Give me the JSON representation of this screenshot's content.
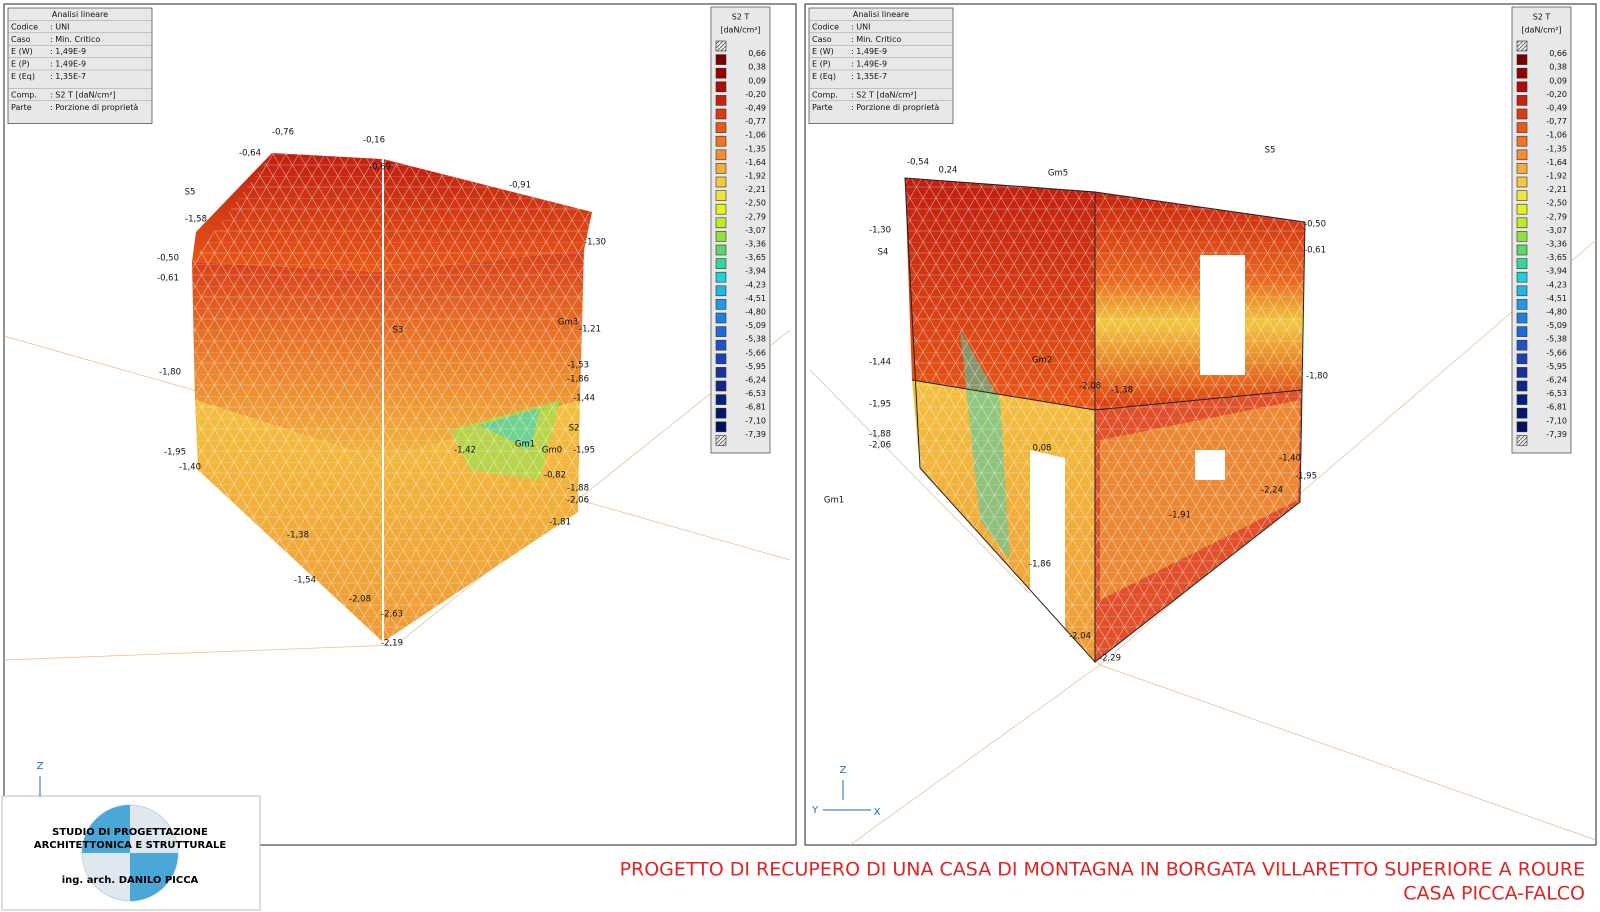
{
  "panels": [
    {
      "info": {
        "title": "Analisi lineare",
        "rows": [
          [
            "Codice",
            ": UNI"
          ],
          [
            "Caso",
            ":  Min. Critico"
          ],
          [
            "E (W)",
            ": 1,49E-9"
          ],
          [
            "E (P)",
            ": 1,49E-9"
          ],
          [
            "E (Eq)",
            ": 1,35E-7"
          ],
          [
            "Comp.",
            ": S2 T [daN/cm²]"
          ],
          [
            "Parte",
            ":  Porzione di proprietà"
          ]
        ]
      },
      "legend": {
        "title": "S2 T",
        "unit": "[daN/cm²]",
        "labels": [
          "0,66",
          "0,38",
          "0,09",
          "-0,20",
          "-0,49",
          "-0,77",
          "-1,06",
          "-1,35",
          "-1,64",
          "-1,92",
          "-2,21",
          "-2,50",
          "-2,79",
          "-3,07",
          "-3,36",
          "-3,65",
          "-3,94",
          "-4,23",
          "-4,51",
          "-4,80",
          "-5,09",
          "-5,38",
          "-5,66",
          "-5,95",
          "-6,24",
          "-6,53",
          "-6,81",
          "-7,10",
          "-7,39"
        ],
        "colors": [
          "#7a0000",
          "#950000",
          "#b00a0a",
          "#c8200c",
          "#dc3a10",
          "#e85818",
          "#ef7424",
          "#f29030",
          "#f4ac3c",
          "#f5c840",
          "#f2e43a",
          "#e4f020",
          "#c0ea28",
          "#92e040",
          "#5ed66a",
          "#34d4a4",
          "#22cfd4",
          "#20b6e6",
          "#209ae6",
          "#2080e0",
          "#2068d6",
          "#2052c6",
          "#1e40b4",
          "#18309e",
          "#10268c",
          "#081e7c",
          "#02186c",
          "#00105c",
          "#ffffff"
        ]
      },
      "labels": [
        "-0,76",
        "-0,16",
        "-0,64",
        "-0,69",
        "S5",
        "-1,58",
        "-0,50",
        "-0,61",
        "-0,91",
        "-1,30",
        "Gm3",
        "-1,21",
        "-1,80",
        "-1,53",
        "-1,86",
        "-1,44",
        "S3",
        "S2",
        "Gm1",
        "Gm0",
        "-1,42",
        "-1,95",
        "-1,95",
        "-1,40",
        "-0,82",
        "-1,88",
        "-2,06",
        "-1,81",
        "-1,38",
        "-1,54",
        "-2,08",
        "-2,63",
        "-2,19"
      ],
      "axis": [
        "Z"
      ]
    },
    {
      "info": {
        "title": "Analisi lineare",
        "rows": [
          [
            "Codice",
            ": UNI"
          ],
          [
            "Caso",
            ":  Min. Critico"
          ],
          [
            "E (W)",
            ": 1,49E-9"
          ],
          [
            "E (P)",
            ": 1,49E-9"
          ],
          [
            "E (Eq)",
            ": 1,35E-7"
          ],
          [
            "Comp.",
            ": S2 T [daN/cm²]"
          ],
          [
            "Parte",
            ":  Porzione di proprietà"
          ]
        ]
      },
      "legend": {
        "title": "S2 T",
        "unit": "[daN/cm²]",
        "labels": [
          "0,66",
          "0,38",
          "0,09",
          "-0,20",
          "-0,49",
          "-0,77",
          "-1,06",
          "-1,35",
          "-1,64",
          "-1,92",
          "-2,21",
          "-2,50",
          "-2,79",
          "-3,07",
          "-3,36",
          "-3,65",
          "-3,94",
          "-4,23",
          "-4,51",
          "-4,80",
          "-5,09",
          "-5,38",
          "-5,66",
          "-5,95",
          "-6,24",
          "-6,53",
          "-6,81",
          "-7,10",
          "-7,39"
        ],
        "colors": [
          "#7a0000",
          "#950000",
          "#b00a0a",
          "#c8200c",
          "#dc3a10",
          "#e85818",
          "#ef7424",
          "#f29030",
          "#f4ac3c",
          "#f5c840",
          "#f2e43a",
          "#e4f020",
          "#c0ea28",
          "#92e040",
          "#5ed66a",
          "#34d4a4",
          "#22cfd4",
          "#20b6e6",
          "#209ae6",
          "#2080e0",
          "#2068d6",
          "#2052c6",
          "#1e40b4",
          "#18309e",
          "#10268c",
          "#081e7c",
          "#02186c",
          "#00105c",
          "#ffffff"
        ]
      },
      "labels": [
        "-0,54",
        "0,24",
        "Gm5",
        "S5",
        "-1,30",
        "S4",
        "-0,50",
        "-0,61",
        "Gm2",
        "-1,44",
        "-1,80",
        "-1,38",
        "-2,08",
        "-1,95",
        "-1,88",
        "-2,06",
        "0,08",
        "-1,40",
        "-1,95",
        "-1,86",
        "-1,91",
        "-2,24",
        "Gm1",
        "-2,04",
        "-2,29"
      ],
      "axis": [
        "Z",
        "Y",
        "X"
      ]
    }
  ],
  "logo": {
    "line1": "STUDIO DI PROGETTAZIONE",
    "line2": "ARCHITETTONICA E STRUTTURALE",
    "line3": "ing. arch. DANILO PICCA"
  },
  "footer": {
    "title": "PROGETTO DI RECUPERO DI UNA CASA DI MONTAGNA IN BORGATA VILLARETTO SUPERIORE A ROURE",
    "subtitle": "CASA PICCA-FALCO"
  }
}
